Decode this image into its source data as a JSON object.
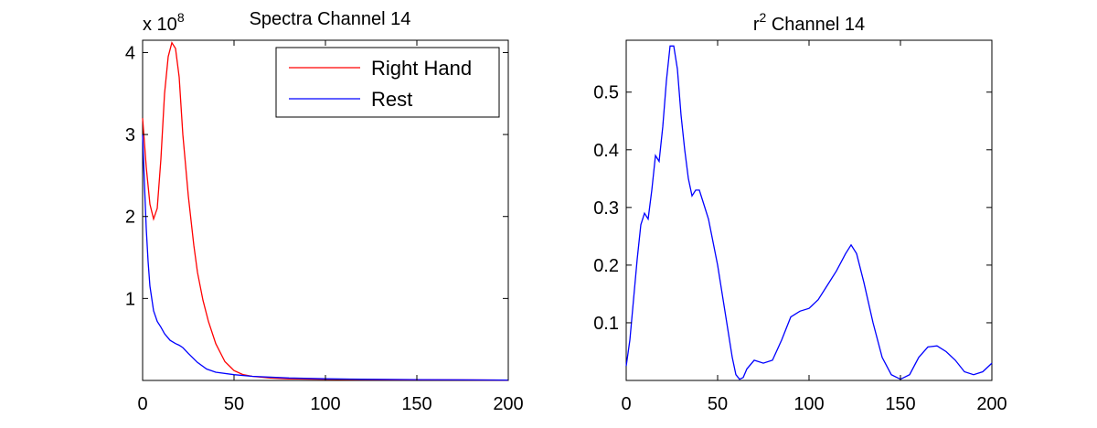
{
  "chart_data": [
    {
      "type": "line",
      "title": "Spectra Channel 14",
      "scale_multiplier": "x 10",
      "scale_exponent": "8",
      "xlim": [
        0,
        200
      ],
      "ylim": [
        0,
        4.15
      ],
      "xticks": [
        "0",
        "50",
        "100",
        "150",
        "200"
      ],
      "yticks": [
        "1",
        "2",
        "3",
        "4"
      ],
      "grid": false,
      "legend_position": "top-right",
      "series": [
        {
          "name": "Right Hand",
          "color": "#ff0000",
          "x": [
            0,
            2,
            4,
            6,
            8,
            10,
            12,
            14,
            16,
            18,
            20,
            22,
            25,
            28,
            30,
            33,
            36,
            40,
            45,
            50,
            55,
            60,
            70,
            80,
            100,
            120,
            150,
            200
          ],
          "y": [
            3.2,
            2.6,
            2.15,
            1.97,
            2.1,
            2.7,
            3.5,
            3.95,
            4.12,
            4.05,
            3.7,
            3.0,
            2.25,
            1.65,
            1.32,
            0.98,
            0.72,
            0.45,
            0.23,
            0.12,
            0.07,
            0.05,
            0.03,
            0.02,
            0.015,
            0.01,
            0.008,
            0.005
          ]
        },
        {
          "name": "Rest",
          "color": "#0000ff",
          "x": [
            0,
            1,
            2,
            3,
            4,
            6,
            8,
            10,
            12,
            15,
            18,
            20,
            22,
            25,
            30,
            35,
            40,
            50,
            60,
            80,
            100,
            120,
            150,
            200
          ],
          "y": [
            3.0,
            2.4,
            1.85,
            1.45,
            1.15,
            0.85,
            0.72,
            0.65,
            0.57,
            0.49,
            0.45,
            0.43,
            0.4,
            0.33,
            0.22,
            0.14,
            0.1,
            0.07,
            0.05,
            0.03,
            0.02,
            0.015,
            0.01,
            0.005
          ]
        }
      ]
    },
    {
      "type": "line",
      "title": "r",
      "title_sup": "2",
      "title_rest": " Channel 14",
      "xlim": [
        0,
        200
      ],
      "ylim": [
        0,
        0.59
      ],
      "xticks": [
        "0",
        "50",
        "100",
        "150",
        "200"
      ],
      "yticks": [
        "0.1",
        "0.2",
        "0.3",
        "0.4",
        "0.5"
      ],
      "grid": false,
      "series": [
        {
          "color": "#0000ff",
          "x": [
            0,
            2,
            4,
            6,
            8,
            10,
            12,
            14,
            16,
            18,
            20,
            22,
            24,
            26,
            28,
            30,
            32,
            34,
            36,
            38,
            40,
            42,
            45,
            50,
            55,
            58,
            60,
            62,
            64,
            66,
            70,
            75,
            80,
            85,
            90,
            95,
            100,
            105,
            110,
            115,
            120,
            123,
            126,
            130,
            135,
            140,
            145,
            150,
            155,
            160,
            165,
            170,
            175,
            180,
            185,
            190,
            195,
            200
          ],
          "y": [
            0.025,
            0.07,
            0.14,
            0.21,
            0.27,
            0.29,
            0.28,
            0.33,
            0.39,
            0.38,
            0.44,
            0.52,
            0.58,
            0.58,
            0.54,
            0.46,
            0.4,
            0.35,
            0.32,
            0.33,
            0.33,
            0.31,
            0.28,
            0.2,
            0.1,
            0.04,
            0.01,
            0.002,
            0.005,
            0.02,
            0.035,
            0.03,
            0.035,
            0.07,
            0.11,
            0.12,
            0.125,
            0.14,
            0.165,
            0.19,
            0.22,
            0.235,
            0.22,
            0.17,
            0.1,
            0.04,
            0.01,
            0.002,
            0.01,
            0.04,
            0.058,
            0.06,
            0.05,
            0.035,
            0.015,
            0.01,
            0.015,
            0.03
          ]
        }
      ]
    }
  ]
}
